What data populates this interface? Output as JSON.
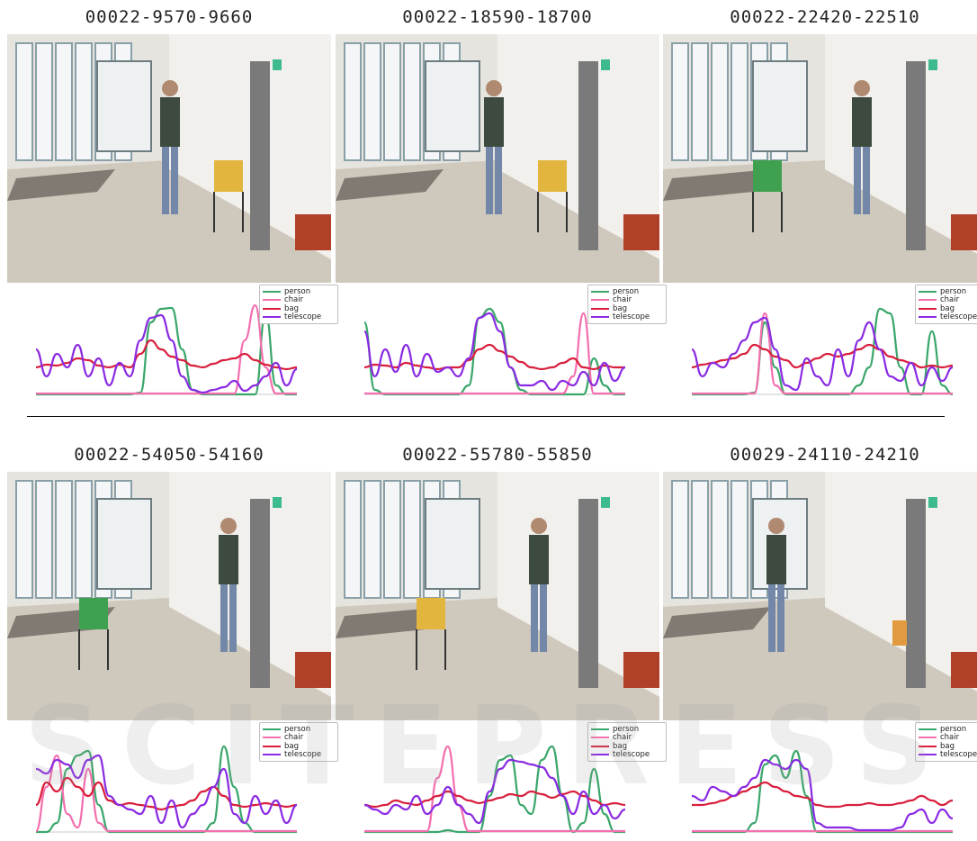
{
  "figure": {
    "watermark": "SCITEPRESS",
    "legend": {
      "entries": [
        {
          "label": "person",
          "color": "#3aa66a"
        },
        {
          "label": "chair",
          "color": "#f36fae"
        },
        {
          "label": "bag",
          "color": "#d81f3c"
        },
        {
          "label": "telescope",
          "color": "#8a2be2"
        }
      ]
    },
    "panels": [
      {
        "title": "00022-9570-9660"
      },
      {
        "title": "00022-18590-18700"
      },
      {
        "title": "00022-22420-22510"
      },
      {
        "title": "00022-54050-54160"
      },
      {
        "title": "00022-55780-55850"
      },
      {
        "title": "00029-24110-24210"
      }
    ]
  },
  "chart_data": [
    {
      "type": "line",
      "x": [
        0,
        0.04,
        0.08,
        0.12,
        0.16,
        0.2,
        0.24,
        0.28,
        0.32,
        0.36,
        0.4,
        0.44,
        0.48,
        0.52,
        0.56,
        0.6,
        0.64,
        0.68,
        0.72,
        0.76,
        0.8,
        0.84,
        0.88,
        0.92,
        0.96,
        1.0
      ],
      "series": [
        {
          "name": "person",
          "values": [
            0,
            0,
            0,
            0,
            0,
            0,
            0,
            0,
            0,
            0,
            0.02,
            0.8,
            0.95,
            0.96,
            0.5,
            0.05,
            0,
            0,
            0,
            0,
            0,
            0,
            0.9,
            0.1,
            0,
            0
          ]
        },
        {
          "name": "chair",
          "values": [
            0.01,
            0.01,
            0.01,
            0.01,
            0.01,
            0.01,
            0.01,
            0.01,
            0.01,
            0.01,
            0.01,
            0.01,
            0.01,
            0.01,
            0.01,
            0.01,
            0.01,
            0.01,
            0.01,
            0.01,
            0.6,
            0.99,
            0.3,
            0.01,
            0.01,
            0.01
          ]
        },
        {
          "name": "bag",
          "values": [
            0.3,
            0.33,
            0.32,
            0.35,
            0.4,
            0.38,
            0.32,
            0.3,
            0.33,
            0.3,
            0.45,
            0.6,
            0.5,
            0.42,
            0.38,
            0.32,
            0.3,
            0.34,
            0.38,
            0.4,
            0.45,
            0.38,
            0.33,
            0.3,
            0.28,
            0.3
          ]
        },
        {
          "name": "telescope",
          "values": [
            0.5,
            0.2,
            0.45,
            0.3,
            0.55,
            0.2,
            0.4,
            0.1,
            0.35,
            0.2,
            0.6,
            0.85,
            0.88,
            0.6,
            0.2,
            0.05,
            0.02,
            0.05,
            0.08,
            0.15,
            0.04,
            0.1,
            0.2,
            0.35,
            0.1,
            0.28
          ]
        }
      ]
    },
    {
      "type": "line",
      "x": [
        0,
        0.04,
        0.08,
        0.12,
        0.16,
        0.2,
        0.24,
        0.28,
        0.32,
        0.36,
        0.4,
        0.44,
        0.48,
        0.52,
        0.56,
        0.6,
        0.64,
        0.68,
        0.72,
        0.76,
        0.8,
        0.84,
        0.88,
        0.92,
        0.96,
        1.0
      ],
      "series": [
        {
          "name": "person",
          "values": [
            0.8,
            0.05,
            0,
            0,
            0,
            0,
            0,
            0,
            0,
            0,
            0.1,
            0.85,
            0.95,
            0.8,
            0.3,
            0.05,
            0,
            0,
            0,
            0,
            0,
            0,
            0.4,
            0.1,
            0,
            0
          ]
        },
        {
          "name": "chair",
          "values": [
            0.01,
            0.01,
            0.01,
            0.01,
            0.01,
            0.01,
            0.01,
            0.01,
            0.01,
            0.01,
            0.01,
            0.01,
            0.01,
            0.01,
            0.01,
            0.01,
            0.01,
            0.01,
            0.01,
            0.01,
            0.2,
            0.9,
            0.01,
            0.01,
            0.01,
            0.01
          ]
        },
        {
          "name": "bag",
          "values": [
            0.3,
            0.33,
            0.32,
            0.3,
            0.35,
            0.32,
            0.3,
            0.28,
            0.3,
            0.3,
            0.38,
            0.5,
            0.55,
            0.48,
            0.42,
            0.36,
            0.3,
            0.28,
            0.3,
            0.35,
            0.4,
            0.3,
            0.28,
            0.32,
            0.3,
            0.3
          ]
        },
        {
          "name": "telescope",
          "values": [
            0.7,
            0.2,
            0.5,
            0.25,
            0.55,
            0.2,
            0.45,
            0.25,
            0.3,
            0.2,
            0.4,
            0.85,
            0.9,
            0.7,
            0.3,
            0.1,
            0.1,
            0.15,
            0.05,
            0.15,
            0.1,
            0.25,
            0.1,
            0.35,
            0.15,
            0.3
          ]
        }
      ]
    },
    {
      "type": "line",
      "x": [
        0,
        0.04,
        0.08,
        0.12,
        0.16,
        0.2,
        0.24,
        0.28,
        0.32,
        0.36,
        0.4,
        0.44,
        0.48,
        0.52,
        0.56,
        0.6,
        0.64,
        0.68,
        0.72,
        0.76,
        0.8,
        0.84,
        0.88,
        0.92,
        0.96,
        1.0
      ],
      "series": [
        {
          "name": "person",
          "values": [
            0,
            0,
            0,
            0,
            0,
            0,
            0.02,
            0.8,
            0.3,
            0,
            0,
            0,
            0,
            0,
            0,
            0,
            0.1,
            0.3,
            0.95,
            0.9,
            0.3,
            0,
            0,
            0.7,
            0.1,
            0
          ]
        },
        {
          "name": "chair",
          "values": [
            0.01,
            0.01,
            0.01,
            0.01,
            0.01,
            0.01,
            0.01,
            0.9,
            0.1,
            0.01,
            0.01,
            0.01,
            0.01,
            0.01,
            0.01,
            0.01,
            0.01,
            0.01,
            0.01,
            0.01,
            0.01,
            0.01,
            0.01,
            0.01,
            0.01,
            0.01
          ]
        },
        {
          "name": "bag",
          "values": [
            0.3,
            0.33,
            0.35,
            0.38,
            0.4,
            0.45,
            0.55,
            0.5,
            0.42,
            0.38,
            0.3,
            0.35,
            0.4,
            0.45,
            0.42,
            0.45,
            0.5,
            0.55,
            0.5,
            0.42,
            0.38,
            0.35,
            0.3,
            0.32,
            0.3,
            0.32
          ]
        },
        {
          "name": "telescope",
          "values": [
            0.5,
            0.2,
            0.35,
            0.3,
            0.45,
            0.6,
            0.8,
            0.85,
            0.5,
            0.1,
            0.05,
            0.4,
            0.2,
            0.1,
            0.5,
            0.2,
            0.6,
            0.8,
            0.5,
            0.2,
            0.15,
            0.35,
            0.1,
            0.3,
            0.15,
            0.3
          ]
        }
      ]
    },
    {
      "type": "line",
      "x": [
        0,
        0.04,
        0.08,
        0.12,
        0.16,
        0.2,
        0.24,
        0.28,
        0.32,
        0.36,
        0.4,
        0.44,
        0.48,
        0.52,
        0.56,
        0.6,
        0.64,
        0.68,
        0.72,
        0.76,
        0.8,
        0.84,
        0.88,
        0.92,
        0.96,
        1.0
      ],
      "series": [
        {
          "name": "person",
          "values": [
            0,
            0,
            0.1,
            0.7,
            0.85,
            0.9,
            0.3,
            0,
            0,
            0,
            0,
            0,
            0,
            0,
            0,
            0,
            0,
            0.1,
            0.95,
            0.5,
            0.1,
            0,
            0,
            0,
            0,
            0
          ]
        },
        {
          "name": "chair",
          "values": [
            0.01,
            0.5,
            0.85,
            0.2,
            0.05,
            0.7,
            0.1,
            0.01,
            0.01,
            0.01,
            0.01,
            0.01,
            0.01,
            0.01,
            0.01,
            0.01,
            0.01,
            0.01,
            0.01,
            0.01,
            0.01,
            0.01,
            0.01,
            0.01,
            0.01,
            0.01
          ]
        },
        {
          "name": "bag",
          "values": [
            0.3,
            0.55,
            0.45,
            0.6,
            0.5,
            0.4,
            0.55,
            0.35,
            0.3,
            0.32,
            0.3,
            0.28,
            0.25,
            0.28,
            0.3,
            0.35,
            0.45,
            0.5,
            0.4,
            0.3,
            0.28,
            0.3,
            0.32,
            0.3,
            0.28,
            0.3
          ]
        },
        {
          "name": "telescope",
          "values": [
            0.7,
            0.65,
            0.8,
            0.75,
            0.6,
            0.8,
            0.85,
            0.4,
            0.3,
            0.25,
            0.2,
            0.4,
            0.1,
            0.35,
            0.05,
            0.2,
            0.3,
            0.5,
            0.7,
            0.2,
            0.1,
            0.4,
            0.2,
            0.35,
            0.1,
            0.3
          ]
        }
      ]
    },
    {
      "type": "line",
      "x": [
        0,
        0.04,
        0.08,
        0.12,
        0.16,
        0.2,
        0.24,
        0.28,
        0.32,
        0.36,
        0.4,
        0.44,
        0.48,
        0.52,
        0.56,
        0.6,
        0.64,
        0.68,
        0.72,
        0.76,
        0.8,
        0.84,
        0.88,
        0.92,
        0.96,
        1.0
      ],
      "series": [
        {
          "name": "person",
          "values": [
            0,
            0,
            0,
            0,
            0,
            0,
            0,
            0,
            0.02,
            0,
            0,
            0,
            0.4,
            0.8,
            0.85,
            0.3,
            0.2,
            0.8,
            0.95,
            0.4,
            0,
            0.1,
            0.7,
            0.2,
            0,
            0
          ]
        },
        {
          "name": "chair",
          "values": [
            0.01,
            0.01,
            0.01,
            0.01,
            0.01,
            0.01,
            0.01,
            0.6,
            0.95,
            0.3,
            0.01,
            0.01,
            0.01,
            0.01,
            0.01,
            0.01,
            0.01,
            0.01,
            0.01,
            0.01,
            0.01,
            0.01,
            0.01,
            0.01,
            0.01,
            0.01
          ]
        },
        {
          "name": "bag",
          "values": [
            0.3,
            0.28,
            0.3,
            0.35,
            0.32,
            0.3,
            0.35,
            0.4,
            0.45,
            0.4,
            0.35,
            0.32,
            0.35,
            0.38,
            0.42,
            0.4,
            0.45,
            0.42,
            0.38,
            0.42,
            0.45,
            0.4,
            0.35,
            0.3,
            0.32,
            0.3
          ]
        },
        {
          "name": "telescope",
          "values": [
            0.3,
            0.25,
            0.2,
            0.3,
            0.25,
            0.4,
            0.2,
            0.3,
            0.5,
            0.3,
            0.2,
            0.1,
            0.45,
            0.7,
            0.8,
            0.78,
            0.75,
            0.72,
            0.6,
            0.4,
            0.2,
            0.45,
            0.2,
            0.3,
            0.15,
            0.25
          ]
        }
      ]
    },
    {
      "type": "line",
      "x": [
        0,
        0.04,
        0.08,
        0.12,
        0.16,
        0.2,
        0.24,
        0.28,
        0.32,
        0.36,
        0.4,
        0.44,
        0.48,
        0.52,
        0.56,
        0.6,
        0.64,
        0.68,
        0.72,
        0.76,
        0.8,
        0.84,
        0.88,
        0.92,
        0.96,
        1.0
      ],
      "series": [
        {
          "name": "person",
          "values": [
            0,
            0,
            0,
            0,
            0,
            0,
            0.1,
            0.75,
            0.85,
            0.6,
            0.9,
            0.4,
            0,
            0,
            0,
            0,
            0,
            0,
            0,
            0,
            0,
            0,
            0,
            0,
            0,
            0
          ]
        },
        {
          "name": "chair",
          "values": [
            0.01,
            0.01,
            0.01,
            0.01,
            0.01,
            0.01,
            0.01,
            0.01,
            0.01,
            0.01,
            0.01,
            0.01,
            0.01,
            0.01,
            0.01,
            0.01,
            0.01,
            0.01,
            0.01,
            0.01,
            0.01,
            0.01,
            0.01,
            0.01,
            0.01,
            0.01
          ]
        },
        {
          "name": "bag",
          "values": [
            0.3,
            0.3,
            0.32,
            0.35,
            0.4,
            0.45,
            0.5,
            0.55,
            0.5,
            0.45,
            0.4,
            0.38,
            0.3,
            0.28,
            0.28,
            0.3,
            0.3,
            0.32,
            0.3,
            0.3,
            0.32,
            0.35,
            0.4,
            0.35,
            0.3,
            0.35
          ]
        },
        {
          "name": "telescope",
          "values": [
            0.4,
            0.35,
            0.5,
            0.45,
            0.4,
            0.5,
            0.6,
            0.8,
            0.75,
            0.7,
            0.8,
            0.7,
            0.1,
            0.05,
            0.05,
            0.05,
            0.02,
            0.02,
            0.02,
            0.02,
            0.05,
            0.2,
            0.25,
            0.1,
            0.25,
            0.15
          ]
        }
      ]
    }
  ]
}
